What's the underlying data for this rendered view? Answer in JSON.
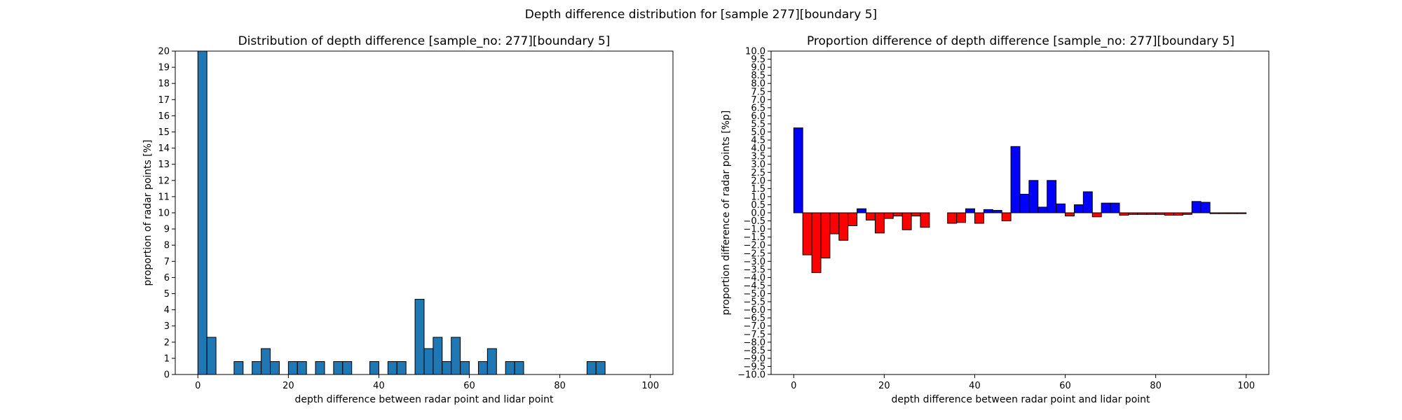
{
  "suptitle": "Depth difference distribution for [sample 277][boundary 5]",
  "chart_data": [
    {
      "type": "bar",
      "title": "Distribution of depth difference [sample_no: 277][boundary 5]",
      "xlabel": "depth difference between radar point and lidar point",
      "ylabel": "proportion of radar points [%]",
      "xlim": [
        -5,
        105
      ],
      "ylim": [
        0,
        20
      ],
      "xticks": [
        "0",
        "20",
        "40",
        "60",
        "80",
        "100"
      ],
      "yticks": [
        "0",
        "1",
        "2",
        "3",
        "4",
        "5",
        "6",
        "7",
        "8",
        "9",
        "10",
        "11",
        "12",
        "13",
        "14",
        "15",
        "16",
        "17",
        "18",
        "19",
        "20"
      ],
      "bin_width": 2,
      "color": "#1f77b4",
      "bins_start": [
        0,
        2,
        8,
        12,
        14,
        16,
        20,
        22,
        26,
        30,
        32,
        38,
        42,
        44,
        48,
        50,
        52,
        54,
        56,
        58,
        62,
        64,
        68,
        70,
        86,
        88
      ],
      "values": [
        20,
        2.3,
        0.8,
        0.8,
        1.6,
        0.8,
        0.8,
        0.8,
        0.8,
        0.8,
        0.8,
        0.8,
        0.8,
        0.8,
        4.65,
        1.6,
        2.3,
        0.8,
        2.3,
        0.8,
        0.8,
        1.6,
        0.8,
        0.8,
        0.8,
        0.8
      ]
    },
    {
      "type": "bar",
      "title": "Proportion difference of depth difference [sample_no: 277][boundary 5]",
      "xlabel": "depth difference between radar point and lidar point",
      "ylabel": "proportion difference of radar points [%p]",
      "xlim": [
        -5,
        105
      ],
      "ylim": [
        -10,
        10
      ],
      "xticks": [
        "0",
        "20",
        "40",
        "60",
        "80",
        "100"
      ],
      "yticks": [
        "10.0",
        "9.5",
        "9.0",
        "8.5",
        "8.0",
        "7.5",
        "7.0",
        "6.5",
        "6.0",
        "5.5",
        "5.0",
        "4.5",
        "4.0",
        "3.5",
        "3.0",
        "2.5",
        "2.0",
        "1.5",
        "1.0",
        "0.5",
        "0.0",
        "−0.5",
        "−1.0",
        "−1.5",
        "−2.0",
        "−2.5",
        "−3.0",
        "−3.5",
        "−4.0",
        "−4.5",
        "−5.0",
        "−5.5",
        "−6.0",
        "−6.5",
        "−7.0",
        "−7.5",
        "−8.0",
        "−8.5",
        "−9.0",
        "−9.5",
        "−10.0"
      ],
      "bin_width": 2,
      "positive_color": "#0000ff",
      "negative_color": "#ff0000",
      "bins_start": [
        0,
        2,
        4,
        6,
        8,
        10,
        12,
        14,
        16,
        18,
        20,
        22,
        24,
        26,
        28,
        30,
        32,
        34,
        36,
        38,
        40,
        42,
        44,
        46,
        48,
        50,
        52,
        54,
        56,
        58,
        60,
        62,
        64,
        66,
        68,
        70,
        72,
        74,
        76,
        78,
        80,
        82,
        84,
        86,
        88,
        90,
        92,
        94,
        96,
        98
      ],
      "values": [
        5.25,
        -2.6,
        -3.7,
        -2.8,
        -1.3,
        -1.7,
        -0.8,
        0.25,
        -0.45,
        -1.25,
        -0.35,
        -0.2,
        -1.05,
        -0.2,
        -0.9,
        0,
        0,
        -0.65,
        -0.6,
        0.25,
        -0.65,
        0.2,
        0.15,
        -0.5,
        4.1,
        1.15,
        2.0,
        0.35,
        2.0,
        0.55,
        -0.2,
        0.5,
        1.3,
        -0.25,
        0.6,
        0.6,
        -0.15,
        -0.1,
        -0.1,
        -0.1,
        -0.1,
        -0.15,
        -0.15,
        -0.1,
        0.7,
        0.65,
        -0.05,
        -0.05,
        -0.05,
        -0.05
      ]
    }
  ]
}
